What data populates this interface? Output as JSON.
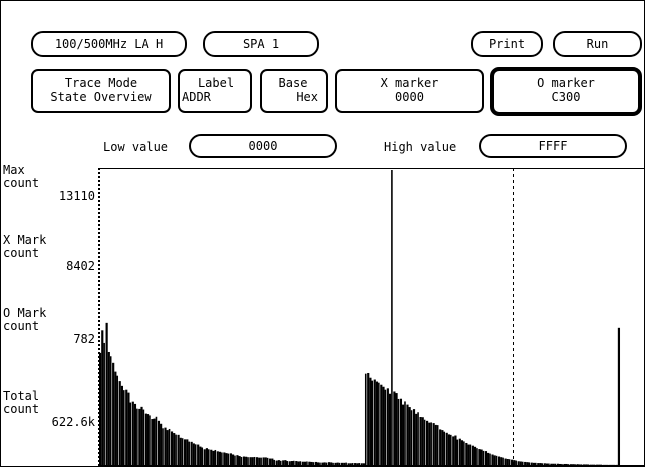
{
  "toolbar": {
    "analyzer": "100/500MHz LA H",
    "mode": "SPA 1",
    "print": "Print",
    "run": "Run"
  },
  "controls": {
    "trace_mode": {
      "line1": "Trace Mode",
      "line2": "State Overview"
    },
    "label": {
      "line1": "Label",
      "line2": "ADDR"
    },
    "base": {
      "line1": "Base",
      "line2": "Hex"
    },
    "x_marker": {
      "line1": "X marker",
      "line2": "0000"
    },
    "o_marker": {
      "line1": "O marker",
      "line2": "C300"
    }
  },
  "range": {
    "low_label": "Low value",
    "low_value": "0000",
    "high_label": "High value",
    "high_value": "FFFF"
  },
  "axis": {
    "max": {
      "line1": "Max",
      "line2": "count",
      "value": "13110"
    },
    "x_mark": {
      "line1": "X Mark",
      "line2": "count",
      "value": "8402"
    },
    "o_mark": {
      "line1": "O Mark",
      "line2": "count",
      "value": "782"
    },
    "total": {
      "line1": "Total",
      "line2": "count",
      "value": "622.6k"
    }
  },
  "chart_data": {
    "type": "bar",
    "x_range_hex": [
      "0000",
      "FFFF"
    ],
    "ylim": [
      0,
      13110
    ],
    "x_marker_address": "0000",
    "o_marker_address": "C300",
    "values": [
      5010,
      6010,
      5450,
      6340,
      5050,
      4860,
      4570,
      4180,
      4000,
      3760,
      3550,
      3360,
      3380,
      3250,
      2810,
      2850,
      2750,
      2540,
      2530,
      2620,
      2500,
      2320,
      2300,
      2240,
      2080,
      2100,
      2180,
      2000,
      1870,
      1670,
      1700,
      1590,
      1640,
      1530,
      1460,
      1390,
      1380,
      1250,
      1230,
      1180,
      1180,
      1080,
      1070,
      1000,
      960,
      950,
      860,
      820,
      740,
      790,
      740,
      720,
      670,
      710,
      650,
      630,
      600,
      600,
      570,
      550,
      560,
      510,
      460,
      480,
      440,
      400,
      420,
      410,
      390,
      390,
      390,
      400,
      390,
      370,
      370,
      380,
      380,
      360,
      330,
      330,
      270,
      240,
      260,
      230,
      250,
      260,
      220,
      210,
      220,
      230,
      220,
      200,
      210,
      190,
      190,
      200,
      190,
      180,
      170,
      180,
      160,
      150,
      150,
      160,
      150,
      170,
      160,
      140,
      140,
      150,
      140,
      140,
      140,
      150,
      120,
      120,
      130,
      130,
      120,
      130,
      120,
      120,
      4090,
      4120,
      3910,
      3780,
      3830,
      3740,
      3690,
      3600,
      3510,
      3380,
      3440,
      3200,
      13110,
      3300,
      3230,
      2970,
      2980,
      2720,
      2860,
      2720,
      2610,
      2470,
      2520,
      2310,
      2380,
      2170,
      2160,
      2050,
      2000,
      1920,
      1930,
      1900,
      1820,
      1810,
      1620,
      1590,
      1520,
      1470,
      1400,
      1380,
      1310,
      1350,
      1170,
      1210,
      1140,
      1090,
      1020,
      950,
      950,
      900,
      850,
      790,
      750,
      730,
      670,
      660,
      580,
      550,
      510,
      470,
      450,
      420,
      390,
      370,
      330,
      310,
      300,
      280,
      260,
      240,
      210,
      200,
      190,
      180,
      170,
      160,
      150,
      140,
      140,
      130,
      130,
      120,
      120,
      110,
      110,
      100,
      100,
      100,
      100,
      90,
      90,
      90,
      90,
      80,
      80,
      80,
      80,
      80,
      70,
      70,
      70,
      70,
      70,
      60,
      60,
      60,
      60,
      60,
      60,
      50,
      50,
      50,
      50,
      50,
      50,
      50,
      6120,
      40,
      40,
      40,
      40,
      40,
      40,
      40,
      40,
      40,
      40,
      40
    ]
  }
}
